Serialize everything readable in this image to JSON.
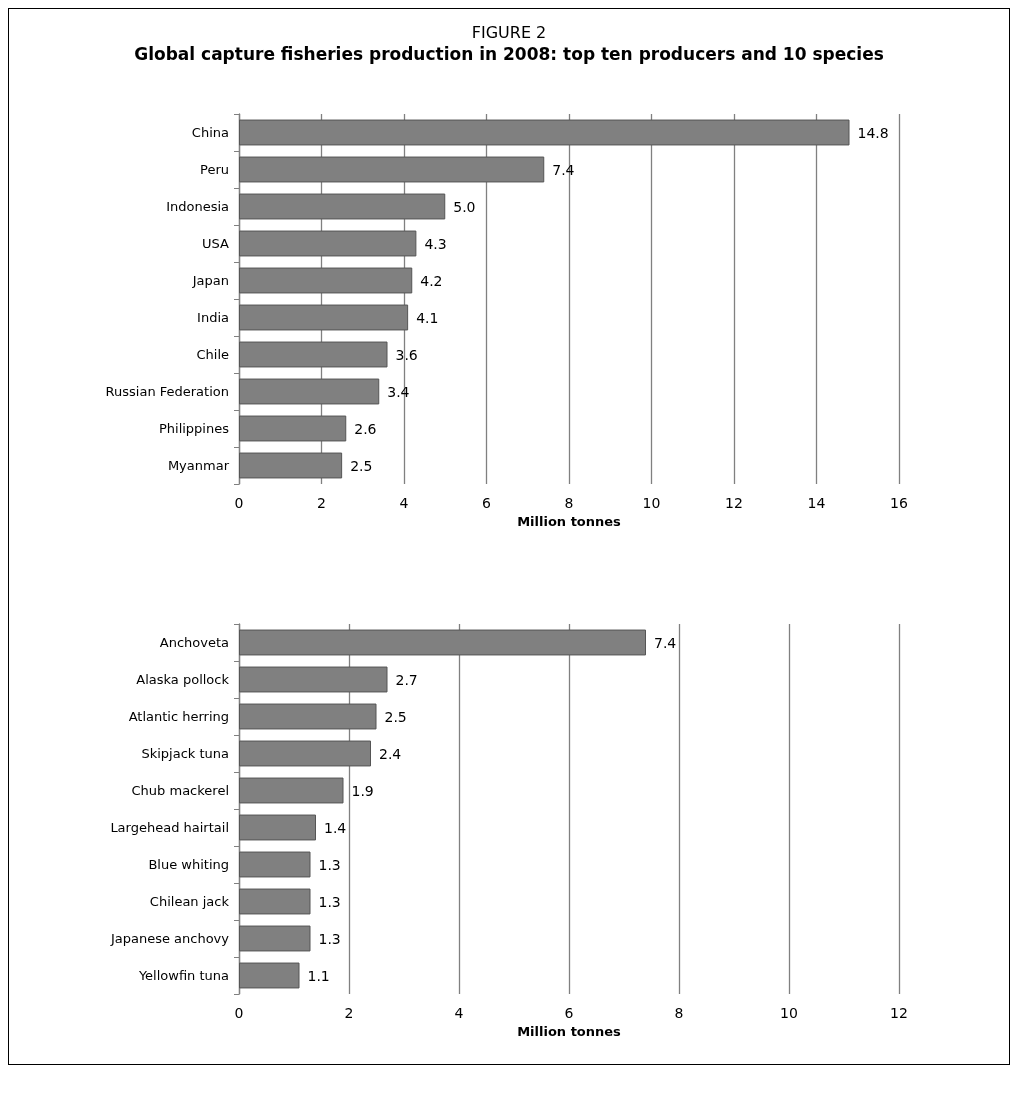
{
  "chart_data": [
    {
      "type": "bar",
      "orientation": "horizontal",
      "title": "FIGURE 2",
      "subtitle": "Global capture fisheries production in 2008: top ten producers and 10 species",
      "categories": [
        "China",
        "Peru",
        "Indonesia",
        "USA",
        "Japan",
        "India",
        "Chile",
        "Russian Federation",
        "Philippines",
        "Myanmar"
      ],
      "values": [
        14.8,
        7.4,
        5.0,
        4.3,
        4.2,
        4.1,
        3.6,
        3.4,
        2.6,
        2.5
      ],
      "value_labels": [
        "14.8",
        "7.4",
        "5.0",
        "4.3",
        "4.2",
        "4.1",
        "3.6",
        "3.4",
        "2.6",
        "2.5"
      ],
      "color": "#808080",
      "xlim": [
        0,
        16
      ],
      "xticks": [
        0,
        2,
        4,
        6,
        8,
        10,
        12,
        14,
        16
      ],
      "xlabel": "Million tonnes",
      "grid": "x"
    },
    {
      "type": "bar",
      "orientation": "horizontal",
      "categories": [
        "Anchoveta",
        "Alaska pollock",
        "Atlantic herring",
        "Skipjack tuna",
        "Chub mackerel",
        "Largehead hairtail",
        "Blue whiting",
        "Chilean jack",
        "Japanese anchovy",
        "Yellowfin tuna"
      ],
      "values": [
        7.4,
        2.7,
        2.5,
        2.4,
        1.9,
        1.4,
        1.3,
        1.3,
        1.3,
        1.1
      ],
      "value_labels": [
        "7.4",
        "2.7",
        "2.5",
        "2.4",
        "1.9",
        "1.4",
        "1.3",
        "1.3",
        "1.3",
        "1.1"
      ],
      "color": "#808080",
      "xlim": [
        0,
        12
      ],
      "xticks": [
        0,
        2,
        4,
        6,
        8,
        10,
        12
      ],
      "xlabel": "Million tonnes",
      "grid": "x"
    }
  ]
}
